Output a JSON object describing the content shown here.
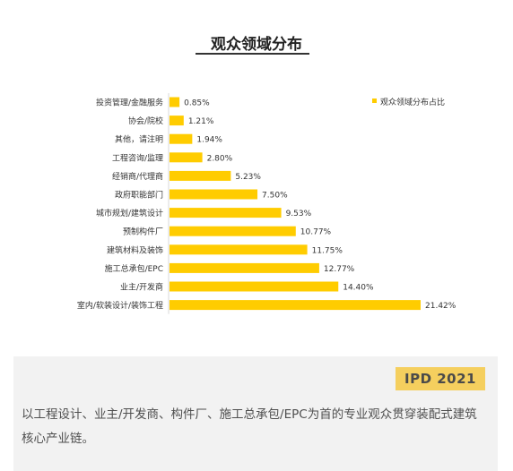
{
  "chart_data": {
    "type": "bar",
    "orientation": "horizontal",
    "title": "观众领域分布",
    "categories": [
      "投资管理/金融服务",
      "协会/院校",
      "其他，请注明",
      "工程咨询/监理",
      "经销商/代理商",
      "政府职能部门",
      "城市规划/建筑设计",
      "预制构件厂",
      "建筑材料及装饰",
      "施工总承包/EPC",
      "业主/开发商",
      "室内/软装设计/装饰工程"
    ],
    "values": [
      0.85,
      1.21,
      1.94,
      2.8,
      5.23,
      7.5,
      9.53,
      10.77,
      11.75,
      12.77,
      14.4,
      21.42
    ],
    "value_labels": [
      "0.85%",
      "1.21%",
      "1.94%",
      "2.80%",
      "5.23%",
      "7.50%",
      "9.53%",
      "10.77%",
      "11.75%",
      "12.77%",
      "14.40%",
      "21.42%"
    ],
    "series": [
      {
        "name": "观众领域分布占比"
      }
    ],
    "unit": "%",
    "xlim": [
      0,
      21.42
    ],
    "grid": false,
    "legend": "top-right",
    "bar_color": "#ffcc00"
  },
  "caption": {
    "badge": "IPD 2021",
    "text": "以工程设计、业主/开发商、构件厂、施工总承包/EPC为首的专业观众贯穿装配式建筑核心产业链。"
  },
  "colors": {
    "bar": "#ffcc00",
    "badge_bg": "#f5cf5e",
    "caption_bg": "#f2f2f2"
  }
}
